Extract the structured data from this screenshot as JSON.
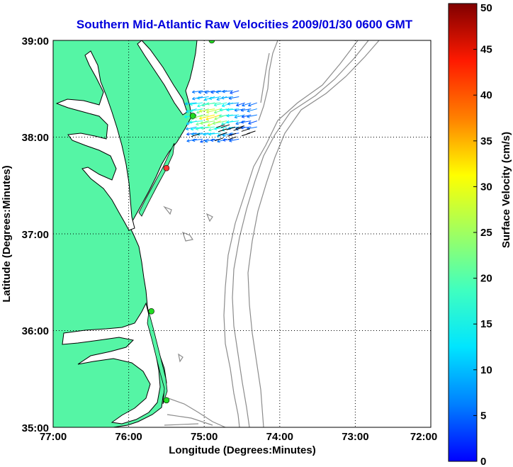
{
  "title": "Southern Mid-Atlantic Raw Velocities 2009/01/30 0600 GMT",
  "xlabel": "Longitude (Degrees:Minutes)",
  "ylabel": "Latitude (Degrees:Minutes)",
  "colorbar": {
    "label": "Surface Velocity (cm/s)",
    "min": 0,
    "max": 50,
    "ticks": [
      "0",
      "5",
      "10",
      "15",
      "20",
      "25",
      "30",
      "35",
      "40",
      "45",
      "50"
    ]
  },
  "axes": {
    "x_ticks": [
      "77:00",
      "76:00",
      "75:00",
      "74:00",
      "73:00",
      "72:00"
    ],
    "y_ticks": [
      "39:00",
      "38:00",
      "37:00",
      "36:00",
      "35:00"
    ],
    "grid": "dotted"
  },
  "colors": {
    "land": "#55f5a5",
    "coast": "#000000",
    "bathymetry": "#8c8c8c",
    "station_active": "#22dd22",
    "station_inactive": "#ff3333"
  },
  "stations": [
    {
      "status": "active",
      "lon": -74.9,
      "lat": 39.0
    },
    {
      "status": "active",
      "lon": -75.15,
      "lat": 38.22
    },
    {
      "status": "inactive",
      "lon": -75.5,
      "lat": 37.68
    },
    {
      "status": "active",
      "lon": -75.7,
      "lat": 36.2
    },
    {
      "status": "active",
      "lon": -75.5,
      "lat": 35.28
    }
  ],
  "vectors": {
    "lon_range": [
      -75.1,
      -74.3
    ],
    "lat_range": [
      37.98,
      38.48
    ],
    "direction": "southwest",
    "speed_range_cm_s": [
      10,
      32
    ]
  }
}
